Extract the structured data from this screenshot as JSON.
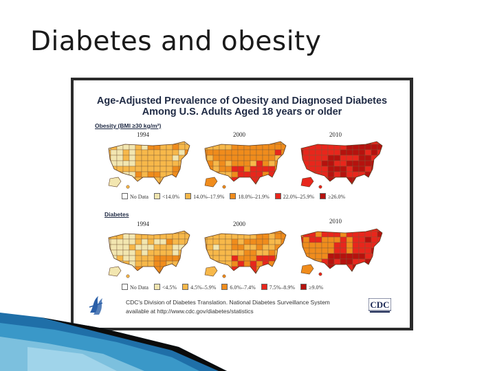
{
  "slide": {
    "title": "Diabetes and obesity"
  },
  "figure": {
    "title_line1": "Age-Adjusted Prevalence of Obesity and Diagnosed Diabetes",
    "title_line2": "Among U.S. Adults Aged 18 years or older",
    "obesity": {
      "label": "Obesity (BMI ≥30 kg/m²)",
      "years": [
        "1994",
        "2000",
        "2010"
      ],
      "legend": [
        "No Data",
        "<14.0%",
        "14.0%–17.9%",
        "18.0%–21.9%",
        "22.0%–25.9%",
        "≥26.0%"
      ]
    },
    "diabetes": {
      "label": "Diabetes",
      "years": [
        "1994",
        "2000",
        "2010"
      ],
      "legend": [
        "No Data",
        "<4.5%",
        "4.5%–5.9%",
        "6.0%–7.4%",
        "7.5%–8.9%",
        "≥9.0%"
      ]
    },
    "credit_line1": "CDC's Division of Diabetes Translation. National Diabetes Surveillance System",
    "credit_line2": "available at http://www.cdc.gov/diabetes/statistics",
    "cdc_logo_text": "CDC"
  },
  "colors": {
    "no_data": "#ffffff",
    "c1": "#f2e6b0",
    "c2": "#f7b84a",
    "c3": "#f08c1c",
    "c4": "#e8261c",
    "c5": "#b5120e"
  },
  "icons": [
    "hhs-logo-icon",
    "cdc-logo-icon"
  ]
}
